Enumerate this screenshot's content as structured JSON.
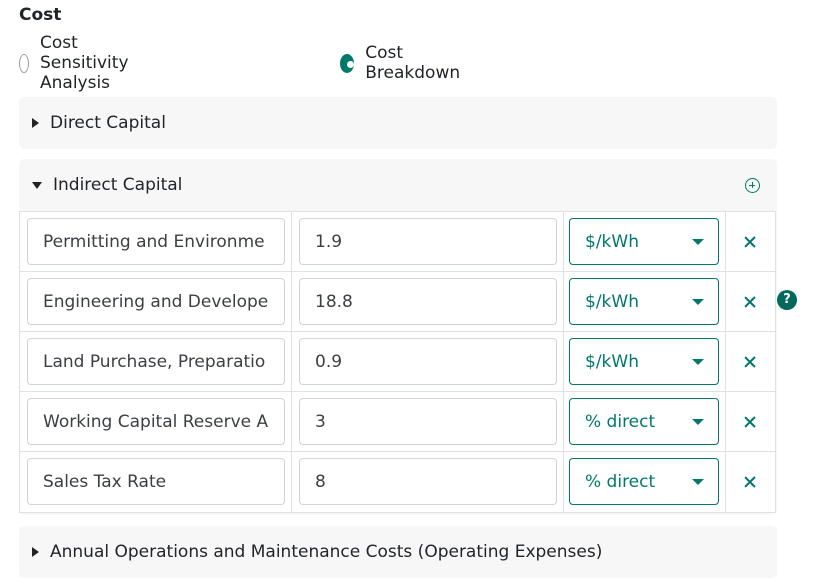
{
  "section": {
    "title": "Cost"
  },
  "mode": {
    "options": [
      {
        "label": "Cost Sensitivity Analysis",
        "selected": false
      },
      {
        "label": "Cost Breakdown",
        "selected": true
      }
    ]
  },
  "panels": {
    "direct_capital": {
      "title": "Direct Capital",
      "expanded": false
    },
    "indirect_capital": {
      "title": "Indirect Capital",
      "expanded": true,
      "rows": [
        {
          "name": "Permitting and Environme",
          "value": "1.9",
          "unit": "$/kWh"
        },
        {
          "name": "Engineering and Develope",
          "value": "18.8",
          "unit": "$/kWh"
        },
        {
          "name": "Land Purchase, Preparatio",
          "value": "0.9",
          "unit": "$/kWh"
        },
        {
          "name": "Working Capital Reserve A",
          "value": "3",
          "unit": "% direct"
        },
        {
          "name": "Sales Tax Rate",
          "value": "8",
          "unit": "% direct"
        }
      ]
    },
    "annual_om": {
      "title": "Annual Operations and Maintenance Costs (Operating Expenses)",
      "expanded": false
    }
  },
  "icons": {
    "add": "plus-circle-icon",
    "remove": "close-icon",
    "help": "question-icon",
    "help_glyph": "?"
  },
  "colors": {
    "accent": "#00796b",
    "panel_bg": "#f7f7f8",
    "border": "#dee2e6"
  }
}
